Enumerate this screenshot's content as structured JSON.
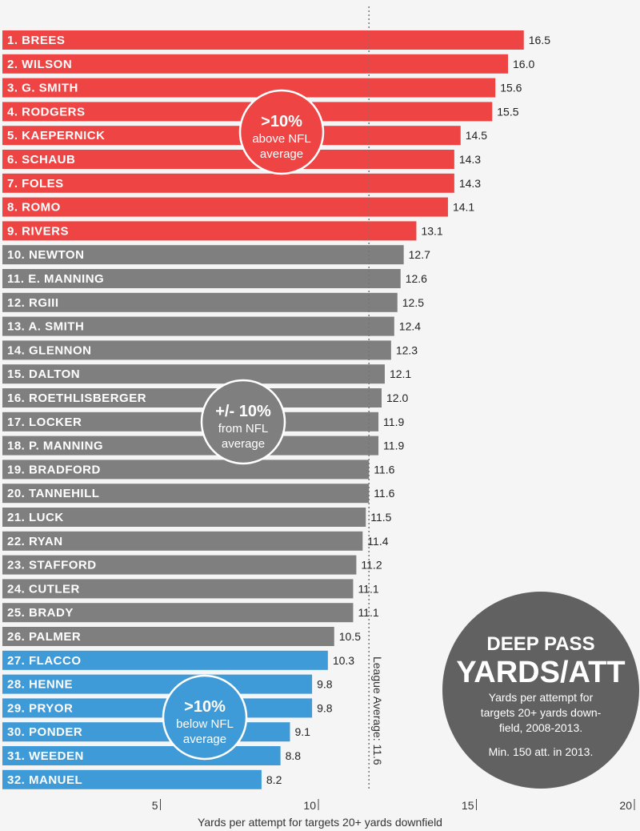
{
  "chart_data": {
    "type": "bar",
    "orientation": "horizontal",
    "title": "DEEP PASS",
    "title_line2": "YARDS/ATT",
    "description_lines": [
      "Yards per attempt for",
      "targets 20+ yards down-",
      "field, 2008-2013."
    ],
    "note": "Min. 150 att. in 2013.",
    "xlabel": "Yards per attempt for targets 20+ yards downfield",
    "xlim": [
      0,
      20
    ],
    "xticks": [
      "5",
      "10",
      "15",
      "20"
    ],
    "xtick_values": [
      5,
      10,
      15,
      20
    ],
    "league_average": 11.6,
    "league_average_label": "League Average: 11.6",
    "colors": {
      "above": "#ef4444",
      "within": "#7f7f7f",
      "below": "#3f9ad8",
      "title_circle": "#616161"
    },
    "categories": [
      "1. BREES",
      "2. WILSON",
      "3. G. SMITH",
      "4. RODGERS",
      "5. KAEPERNICK",
      "6. SCHAUB",
      "7. FOLES",
      "8. ROMO",
      "9. RIVERS",
      "10. NEWTON",
      "11. E. MANNING",
      "12. RGIII",
      "13. A. SMITH",
      "14. GLENNON",
      "15. DALTON",
      "16. ROETHLISBERGER",
      "17. LOCKER",
      "18. P. MANNING",
      "19. BRADFORD",
      "20. TANNEHILL",
      "21. LUCK",
      "22. RYAN",
      "23. STAFFORD",
      "24. CUTLER",
      "25. BRADY",
      "26. PALMER",
      "27. FLACCO",
      "28. HENNE",
      "29. PRYOR",
      "30. PONDER",
      "31. WEEDEN",
      "32. MANUEL"
    ],
    "values": [
      16.5,
      16.0,
      15.6,
      15.5,
      14.5,
      14.3,
      14.3,
      14.1,
      13.1,
      12.7,
      12.6,
      12.5,
      12.4,
      12.3,
      12.1,
      12.0,
      11.9,
      11.9,
      11.6,
      11.6,
      11.5,
      11.4,
      11.2,
      11.1,
      11.1,
      10.5,
      10.3,
      9.8,
      9.8,
      9.1,
      8.8,
      8.2
    ],
    "value_labels": [
      "16.5",
      "16.0",
      "15.6",
      "15.5",
      "14.5",
      "14.3",
      "14.3",
      "14.1",
      "13.1",
      "12.7",
      "12.6",
      "12.5",
      "12.4",
      "12.3",
      "12.1",
      "12.0",
      "11.9",
      "11.9",
      "11.6",
      "11.6",
      "11.5",
      "11.4",
      "11.2",
      "11.1",
      "11.1",
      "10.5",
      "10.3",
      "9.8",
      "9.8",
      "9.1",
      "8.8",
      "8.2"
    ],
    "groups": [
      "above",
      "above",
      "above",
      "above",
      "above",
      "above",
      "above",
      "above",
      "above",
      "within",
      "within",
      "within",
      "within",
      "within",
      "within",
      "within",
      "within",
      "within",
      "within",
      "within",
      "within",
      "within",
      "within",
      "within",
      "within",
      "within",
      "below",
      "below",
      "below",
      "below",
      "below",
      "below"
    ],
    "annotations": [
      {
        "group": "above",
        "big": ">10%",
        "line1": "above NFL",
        "line2": "average"
      },
      {
        "group": "within",
        "big": "+/- 10%",
        "line1": "from NFL",
        "line2": "average"
      },
      {
        "group": "below",
        "big": ">10%",
        "line1": "below NFL",
        "line2": "average"
      }
    ]
  }
}
